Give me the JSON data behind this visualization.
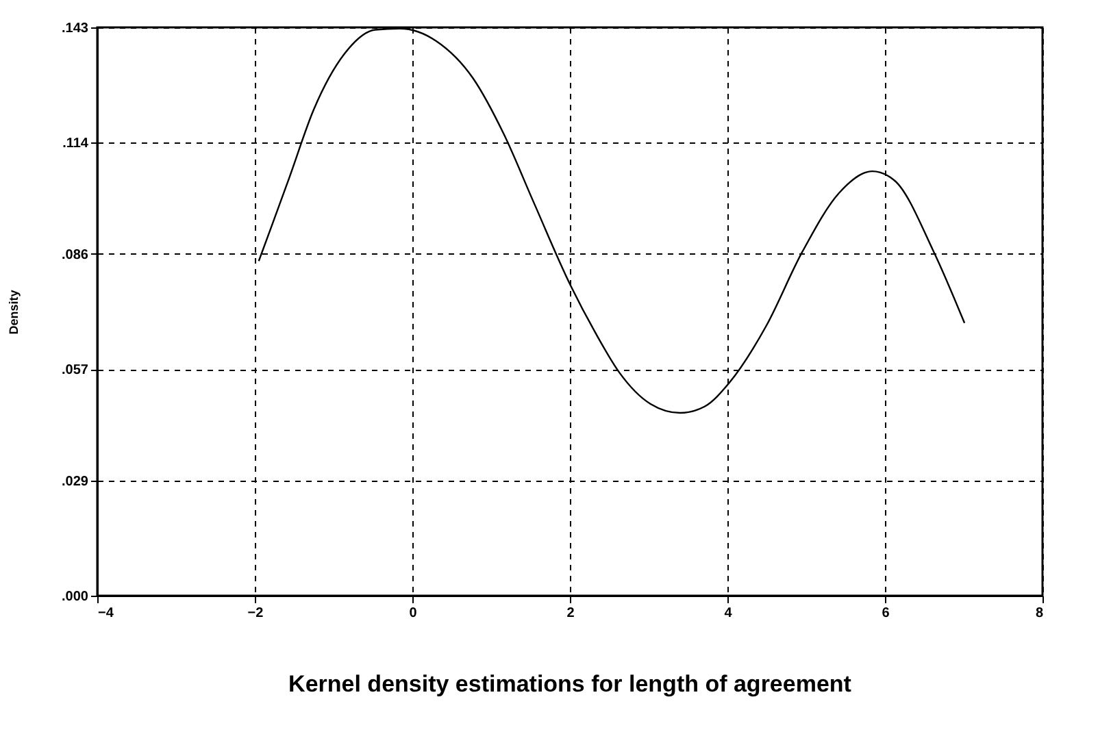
{
  "chart_data": {
    "type": "line",
    "title": "Kernel density estimations for length of agreement",
    "ylabel": "Density",
    "x": [
      -1.95,
      -1.79,
      -1.56,
      -1.25,
      -0.86,
      -0.47,
      -0.16,
      0.3,
      0.77,
      1.16,
      1.54,
      2.01,
      2.32,
      2.63,
      3.02,
      3.4,
      3.71,
      4.02,
      4.49,
      4.95,
      5.42,
      5.84,
      6.12,
      6.62,
      7.01
    ],
    "series": [
      {
        "color": "#000000",
        "values": [
          0.0842,
          0.0928,
          0.1053,
          0.1224,
          0.1364,
          0.1424,
          0.1427,
          0.1396,
          0.1302,
          0.1162,
          0.099,
          0.078,
          0.0663,
          0.0561,
          0.0483,
          0.046,
          0.0476,
          0.0535,
          0.0678,
          0.0865,
          0.1014,
          0.1068,
          0.1045,
          0.0865,
          0.0686
        ]
      }
    ],
    "xlim": [
      -4,
      8
    ],
    "xticks": [
      -4,
      -2,
      0,
      2,
      4,
      6,
      8
    ],
    "ylim": [
      0,
      0.143
    ],
    "yticks": [
      {
        "value": 0,
        "label": ".000"
      },
      {
        "value": 0.029,
        "label": ".029"
      },
      {
        "value": 0.057,
        "label": ".057"
      },
      {
        "value": 0.086,
        "label": ".086"
      },
      {
        "value": 0.114,
        "label": ".114"
      },
      {
        "value": 0.143,
        "label": ".143"
      }
    ],
    "grid": true,
    "line_style": "solid",
    "marker": "none"
  }
}
